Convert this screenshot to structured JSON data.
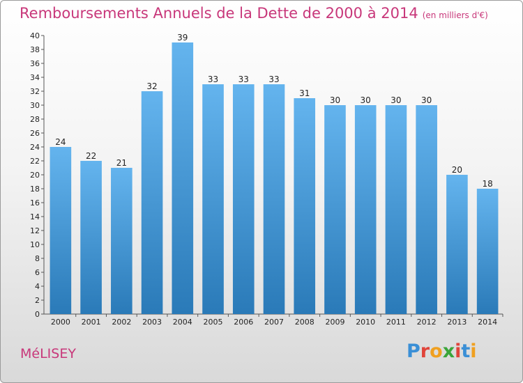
{
  "header": {
    "title": "Remboursements Annuels de la Dette de 2000 à 2014",
    "unit": "(en milliers d'€)"
  },
  "footer": {
    "commune": "MéLISEY",
    "logo": "Proxiti"
  },
  "colors": {
    "title": "#c8377a",
    "bar_top": "#64b4ee",
    "bar_bottom": "#2a7ab8",
    "logo_letters": [
      "#3a8fd6",
      "#e0443a",
      "#f0a020",
      "#3aa53a",
      "#e0443a",
      "#3a8fd6",
      "#f0a020"
    ]
  },
  "chart_data": {
    "type": "bar",
    "title": "Remboursements Annuels de la Dette de 2000 à 2014",
    "subtitle": "(en milliers d'€)",
    "categories": [
      "2000",
      "2001",
      "2002",
      "2003",
      "2004",
      "2005",
      "2006",
      "2007",
      "2008",
      "2009",
      "2010",
      "2011",
      "2012",
      "2013",
      "2014"
    ],
    "values": [
      24,
      22,
      21,
      32,
      39,
      33,
      33,
      33,
      31,
      30,
      30,
      30,
      30,
      20,
      18
    ],
    "ylim": [
      0,
      40
    ],
    "ytick_step": 2,
    "grid": false,
    "legend": "none"
  }
}
